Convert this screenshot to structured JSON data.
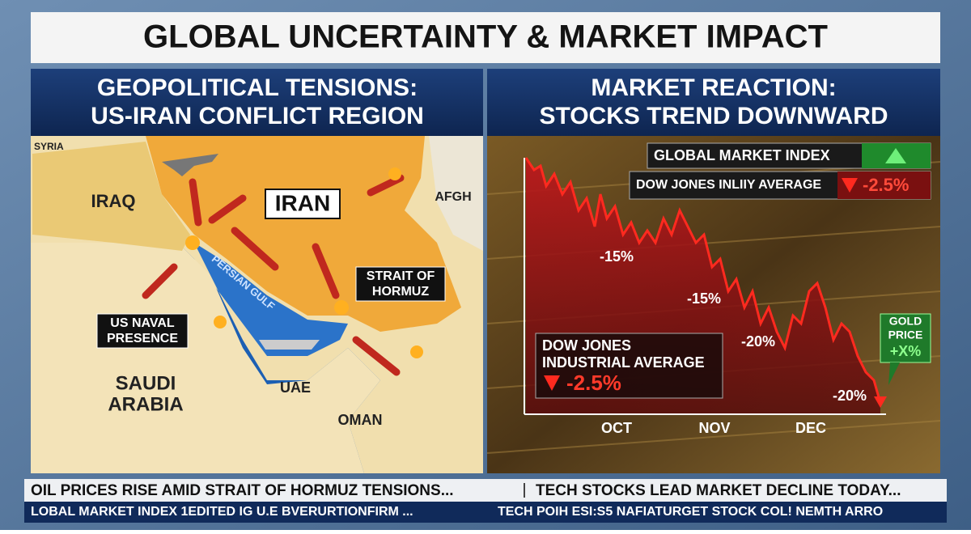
{
  "header": {
    "title": "GLOBAL UNCERTAINTY & MARKET IMPACT"
  },
  "left_panel": {
    "title_lines": [
      "GEOPOLITICAL TENSIONS:",
      "US-IRAN CONFLICT REGION"
    ],
    "map_labels": {
      "syria": "SYRIA",
      "iraq": "IRAQ",
      "iran": "IRAN",
      "afgh": "AFGH",
      "strait": [
        "STRAIT OF",
        "HORMUZ"
      ],
      "naval": [
        "US NAVAL",
        "PRESENCE"
      ],
      "gulf": "PERSIAN GULF",
      "saudi": [
        "SAUDI",
        "ARABIA"
      ],
      "uae": "UAE",
      "oman": "OMAN"
    }
  },
  "right_panel": {
    "title_lines": [
      "MARKET REACTION:",
      "STOCKS TREND DOWNWARD"
    ],
    "index_box": "GLOBAL MARKET INDEX",
    "dow_box": {
      "label": "DOW JONES INLIIY AVERAGE",
      "change": "-2.5%"
    },
    "annotations": [
      "-15%",
      "-15%",
      "-20%",
      "-20%"
    ],
    "dow_card": {
      "lines": [
        "DOW JONES",
        "INDUSTRIAL AVERAGE"
      ],
      "change": "-2.5%"
    },
    "gold_box": [
      "GOLD",
      "PRICE",
      "+X%"
    ],
    "x_labels": [
      "OCT",
      "NOV",
      "DEC"
    ]
  },
  "ticker": {
    "headlines": [
      "OIL PRICES RISE AMID STRAIT OF HORMUZ TENSIONS...",
      "TECH STOCKS LEAD MARKET DECLINE TODAY..."
    ],
    "crawl": [
      "LOBAL MARKET INDEX  1EDITED IG U.E BVERURTIONFIRM ...",
      "TECH POIH ESI:S5 NAFIATURGET STOCK COL! NEMTH ARRO"
    ]
  }
}
